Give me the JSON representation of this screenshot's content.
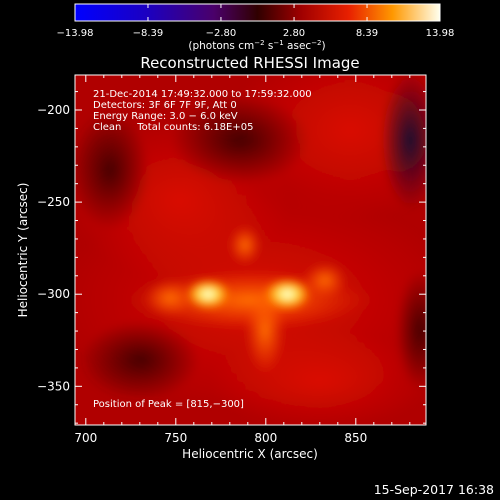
{
  "chart_data": {
    "type": "heatmap",
    "title": "Reconstructed RHESSI Image",
    "xlabel": "Heliocentric X (arcsec)",
    "ylabel": "Heliocentric Y (arcsec)",
    "xlim": [
      694,
      889
    ],
    "ylim": [
      -371,
      -181
    ],
    "x_ticks": [
      700,
      750,
      800,
      850
    ],
    "x_tick_labels": [
      "700",
      "750",
      "800",
      "850"
    ],
    "y_ticks": [
      -200,
      -250,
      -300,
      -350
    ],
    "y_tick_labels": [
      "−200",
      "−250",
      "−300",
      "−350"
    ],
    "colorbar": {
      "min": -13.98,
      "max": 13.98,
      "tick_values": [
        -13.98,
        -8.39,
        -2.8,
        2.8,
        8.39,
        13.98
      ],
      "tick_labels": [
        "−13.98",
        "−8.39",
        "−2.80",
        "2.80",
        "8.39",
        "13.98"
      ],
      "unit_label_parts": [
        "(photons cm",
        "−2",
        " s",
        "−1",
        " asec",
        "−2",
        ")"
      ]
    },
    "annotations": [
      "21-Dec-2014 17:49:32.000 to 17:59:32.000",
      "Detectors: 3F 6F 7F 9F, Att 0",
      "Energy Range: 3.0 − 6.0 keV",
      "Clean     Total counts: 6.18E+05"
    ],
    "peak_label": "Position of Peak = [815,−300]",
    "peak_position": [
      815,
      -300
    ],
    "sources": [
      {
        "x": 768,
        "y": -300,
        "intensity": 12.4
      },
      {
        "x": 812,
        "y": -300,
        "intensity": 13.98
      }
    ],
    "timestamp": "15-Sep-2017 16:38"
  }
}
